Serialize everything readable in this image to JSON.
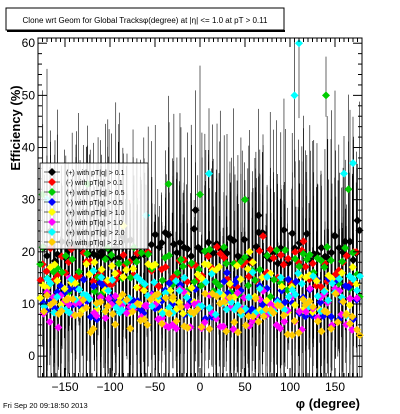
{
  "chart_data": {
    "type": "scatter",
    "title": "Clone wrt Geom for Global Tracksφ(degree) at |η| <= 1.0 at pT > 0.11",
    "xlabel": "φ (degree)",
    "ylabel": "Efficiency (%)",
    "xlim": [
      -180,
      180
    ],
    "ylim": [
      -4,
      61
    ],
    "x_ticks": [
      -150,
      -100,
      -50,
      0,
      50,
      100,
      150
    ],
    "y_ticks": [
      0,
      10,
      20,
      30,
      40,
      50,
      60
    ],
    "grid": false,
    "error_bars": true,
    "legend_position": "upper-left",
    "series": [
      {
        "name": "(+) with pT|q| > 0.1",
        "color": "#000000",
        "base": 21,
        "spread": 3.5,
        "outliers": [
          [
            -5,
            28
          ],
          [
            65,
            27
          ],
          [
            150,
            23
          ],
          [
            175,
            26
          ]
        ]
      },
      {
        "name": "(-) with pT|q| > 0.1",
        "color": "#ff0000",
        "base": 17,
        "spread": 4,
        "outliers": [
          [
            70,
            23
          ],
          [
            115,
            22
          ]
        ]
      },
      {
        "name": "(+) with pT|q| > 0.5",
        "color": "#00cc00",
        "base": 16,
        "spread": 5,
        "outliers": [
          [
            -175,
            31
          ],
          [
            -125,
            33
          ],
          [
            -35,
            33
          ],
          [
            0,
            31
          ],
          [
            50,
            30
          ],
          [
            140,
            50
          ],
          [
            165,
            32
          ]
        ]
      },
      {
        "name": "(-) with pT|q| > 0.5",
        "color": "#0000ff",
        "base": 11,
        "spread": 4,
        "outliers": [
          [
            30,
            16
          ]
        ]
      },
      {
        "name": "(+) with pT|q| > 1.0",
        "color": "#ffff00",
        "base": 13,
        "spread": 5,
        "outliers": [
          [
            -85,
            25
          ],
          [
            55,
            20
          ]
        ]
      },
      {
        "name": "(-) with pT|q| > 1.0",
        "color": "#ff00ff",
        "base": 9,
        "spread": 4,
        "outliers": [
          [
            -145,
            15
          ]
        ]
      },
      {
        "name": "(+) with pT|q| > 2.0",
        "color": "#00ffff",
        "base": 12,
        "spread": 4.5,
        "outliers": [
          [
            -170,
            30
          ],
          [
            -60,
            27
          ],
          [
            10,
            35
          ],
          [
            105,
            50
          ],
          [
            110,
            60
          ],
          [
            160,
            35
          ],
          [
            170,
            37
          ]
        ]
      },
      {
        "name": "(-) with pT|q| > 2.0",
        "color": "#ffcc00",
        "base": 8,
        "spread": 4,
        "outliers": []
      }
    ]
  },
  "footer": {
    "timestamp": "Fri Sep 20 09:18:50 2013"
  }
}
